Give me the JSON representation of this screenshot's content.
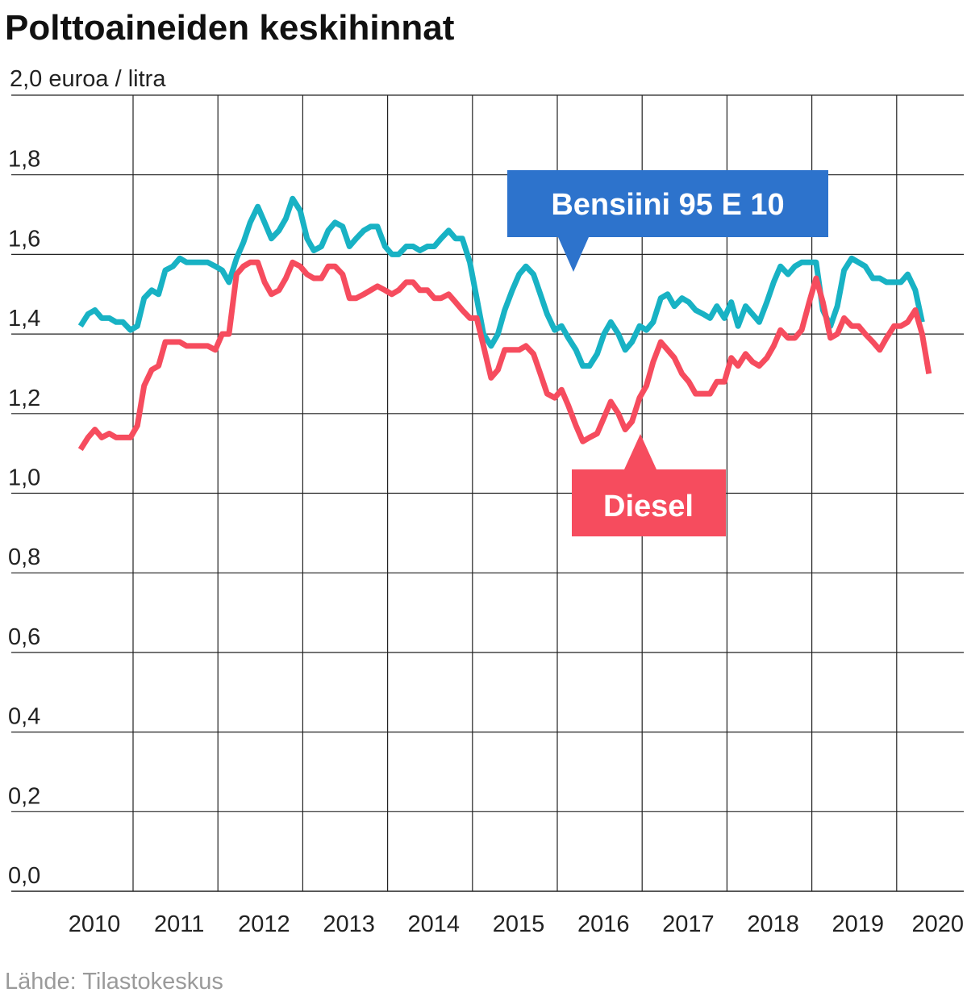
{
  "colors": {
    "petrol": "#18b2c4",
    "diesel": "#f64c5e",
    "petrol_callout": "#2d73cc",
    "diesel_callout": "#f64c5e",
    "grid": "#222222",
    "source": "#9a9a9a"
  },
  "chart_data": {
    "type": "line",
    "title": "Polttoaineiden keskihinnat",
    "unit_label": "2,0 euroa / litra",
    "source": "Lähde: Tilastokeskus",
    "ylim": [
      0,
      2.0
    ],
    "xlim": [
      2009.38,
      2020.35
    ],
    "yticks": [
      {
        "value": 1.8,
        "label": "1,8"
      },
      {
        "value": 1.6,
        "label": "1,6"
      },
      {
        "value": 1.4,
        "label": "1,4"
      },
      {
        "value": 1.2,
        "label": "1,2"
      },
      {
        "value": 1.0,
        "label": "1,0"
      },
      {
        "value": 0.8,
        "label": "0,8"
      },
      {
        "value": 0.6,
        "label": "0,6"
      },
      {
        "value": 0.4,
        "label": "0,4"
      },
      {
        "value": 0.2,
        "label": "0,2"
      },
      {
        "value": 0.0,
        "label": "0,0"
      }
    ],
    "xticks": [
      {
        "value": 2010,
        "label": "2010"
      },
      {
        "value": 2011,
        "label": "2011"
      },
      {
        "value": 2012,
        "label": "2012"
      },
      {
        "value": 2013,
        "label": "2013"
      },
      {
        "value": 2014,
        "label": "2014"
      },
      {
        "value": 2015,
        "label": "2015"
      },
      {
        "value": 2016,
        "label": "2016"
      },
      {
        "value": 2017,
        "label": "2017"
      },
      {
        "value": 2018,
        "label": "2018"
      },
      {
        "value": 2019,
        "label": "2019"
      },
      {
        "value": 2020,
        "label": "2020"
      }
    ],
    "series": [
      {
        "name": "Bensiini 95 E 10",
        "label": "Bensiini 95 E 10",
        "color": "#18b2c4",
        "points": [
          [
            2009.38,
            1.42
          ],
          [
            2009.47,
            1.45
          ],
          [
            2009.55,
            1.46
          ],
          [
            2009.63,
            1.44
          ],
          [
            2009.72,
            1.44
          ],
          [
            2009.8,
            1.43
          ],
          [
            2009.88,
            1.43
          ],
          [
            2009.97,
            1.41
          ],
          [
            2010.05,
            1.42
          ],
          [
            2010.13,
            1.49
          ],
          [
            2010.22,
            1.51
          ],
          [
            2010.3,
            1.5
          ],
          [
            2010.38,
            1.56
          ],
          [
            2010.47,
            1.57
          ],
          [
            2010.55,
            1.59
          ],
          [
            2010.63,
            1.58
          ],
          [
            2010.72,
            1.58
          ],
          [
            2010.8,
            1.58
          ],
          [
            2010.88,
            1.58
          ],
          [
            2010.97,
            1.57
          ],
          [
            2011.05,
            1.56
          ],
          [
            2011.13,
            1.53
          ],
          [
            2011.22,
            1.59
          ],
          [
            2011.3,
            1.63
          ],
          [
            2011.38,
            1.68
          ],
          [
            2011.47,
            1.72
          ],
          [
            2011.55,
            1.68
          ],
          [
            2011.63,
            1.64
          ],
          [
            2011.72,
            1.66
          ],
          [
            2011.8,
            1.69
          ],
          [
            2011.88,
            1.74
          ],
          [
            2011.97,
            1.71
          ],
          [
            2012.05,
            1.64
          ],
          [
            2012.13,
            1.61
          ],
          [
            2012.22,
            1.62
          ],
          [
            2012.3,
            1.66
          ],
          [
            2012.38,
            1.68
          ],
          [
            2012.47,
            1.67
          ],
          [
            2012.55,
            1.62
          ],
          [
            2012.63,
            1.64
          ],
          [
            2012.72,
            1.66
          ],
          [
            2012.8,
            1.67
          ],
          [
            2012.88,
            1.67
          ],
          [
            2012.97,
            1.62
          ],
          [
            2013.05,
            1.6
          ],
          [
            2013.13,
            1.6
          ],
          [
            2013.22,
            1.62
          ],
          [
            2013.3,
            1.62
          ],
          [
            2013.38,
            1.61
          ],
          [
            2013.47,
            1.62
          ],
          [
            2013.55,
            1.62
          ],
          [
            2013.63,
            1.64
          ],
          [
            2013.72,
            1.66
          ],
          [
            2013.8,
            1.64
          ],
          [
            2013.88,
            1.64
          ],
          [
            2013.97,
            1.58
          ],
          [
            2014.05,
            1.49
          ],
          [
            2014.13,
            1.4
          ],
          [
            2014.22,
            1.37
          ],
          [
            2014.3,
            1.4
          ],
          [
            2014.38,
            1.46
          ],
          [
            2014.47,
            1.51
          ],
          [
            2014.55,
            1.55
          ],
          [
            2014.63,
            1.57
          ],
          [
            2014.72,
            1.55
          ],
          [
            2014.8,
            1.5
          ],
          [
            2014.88,
            1.45
          ],
          [
            2014.97,
            1.41
          ],
          [
            2015.05,
            1.42
          ],
          [
            2015.13,
            1.39
          ],
          [
            2015.22,
            1.36
          ],
          [
            2015.3,
            1.32
          ],
          [
            2015.38,
            1.32
          ],
          [
            2015.47,
            1.35
          ],
          [
            2015.55,
            1.4
          ],
          [
            2015.63,
            1.43
          ],
          [
            2015.72,
            1.4
          ],
          [
            2015.8,
            1.36
          ],
          [
            2015.88,
            1.38
          ],
          [
            2015.97,
            1.42
          ],
          [
            2016.05,
            1.41
          ],
          [
            2016.13,
            1.43
          ],
          [
            2016.22,
            1.49
          ],
          [
            2016.3,
            1.5
          ],
          [
            2016.38,
            1.47
          ],
          [
            2016.47,
            1.49
          ],
          [
            2016.55,
            1.48
          ],
          [
            2016.63,
            1.46
          ],
          [
            2016.72,
            1.45
          ],
          [
            2016.8,
            1.44
          ],
          [
            2016.88,
            1.47
          ],
          [
            2016.97,
            1.44
          ],
          [
            2017.05,
            1.48
          ],
          [
            2017.13,
            1.42
          ],
          [
            2017.22,
            1.47
          ],
          [
            2017.3,
            1.45
          ],
          [
            2017.38,
            1.43
          ],
          [
            2017.47,
            1.48
          ],
          [
            2017.55,
            1.53
          ],
          [
            2017.63,
            1.57
          ],
          [
            2017.72,
            1.55
          ],
          [
            2017.8,
            1.57
          ],
          [
            2017.88,
            1.58
          ],
          [
            2017.97,
            1.58
          ],
          [
            2018.05,
            1.58
          ],
          [
            2018.13,
            1.46
          ],
          [
            2018.22,
            1.42
          ],
          [
            2018.3,
            1.47
          ],
          [
            2018.38,
            1.56
          ],
          [
            2018.47,
            1.59
          ],
          [
            2018.55,
            1.58
          ],
          [
            2018.63,
            1.57
          ],
          [
            2018.72,
            1.54
          ],
          [
            2018.8,
            1.54
          ],
          [
            2018.88,
            1.53
          ],
          [
            2018.97,
            1.53
          ],
          [
            2019.05,
            1.53
          ],
          [
            2019.13,
            1.55
          ],
          [
            2019.22,
            1.51
          ],
          [
            2019.3,
            1.43
          ]
        ]
      },
      {
        "name": "Diesel",
        "label": "Diesel",
        "color": "#f64c5e",
        "points": [
          [
            2009.38,
            1.11
          ],
          [
            2009.47,
            1.14
          ],
          [
            2009.55,
            1.16
          ],
          [
            2009.63,
            1.14
          ],
          [
            2009.72,
            1.15
          ],
          [
            2009.8,
            1.14
          ],
          [
            2009.88,
            1.14
          ],
          [
            2009.97,
            1.14
          ],
          [
            2010.05,
            1.17
          ],
          [
            2010.13,
            1.27
          ],
          [
            2010.22,
            1.31
          ],
          [
            2010.3,
            1.32
          ],
          [
            2010.38,
            1.38
          ],
          [
            2010.47,
            1.38
          ],
          [
            2010.55,
            1.38
          ],
          [
            2010.63,
            1.37
          ],
          [
            2010.72,
            1.37
          ],
          [
            2010.8,
            1.37
          ],
          [
            2010.88,
            1.37
          ],
          [
            2010.97,
            1.36
          ],
          [
            2011.05,
            1.4
          ],
          [
            2011.13,
            1.4
          ],
          [
            2011.22,
            1.55
          ],
          [
            2011.3,
            1.57
          ],
          [
            2011.38,
            1.58
          ],
          [
            2011.47,
            1.58
          ],
          [
            2011.55,
            1.53
          ],
          [
            2011.63,
            1.5
          ],
          [
            2011.72,
            1.51
          ],
          [
            2011.8,
            1.54
          ],
          [
            2011.88,
            1.58
          ],
          [
            2011.97,
            1.57
          ],
          [
            2012.05,
            1.55
          ],
          [
            2012.13,
            1.54
          ],
          [
            2012.22,
            1.54
          ],
          [
            2012.3,
            1.57
          ],
          [
            2012.38,
            1.57
          ],
          [
            2012.47,
            1.55
          ],
          [
            2012.55,
            1.49
          ],
          [
            2012.63,
            1.49
          ],
          [
            2012.72,
            1.5
          ],
          [
            2012.8,
            1.51
          ],
          [
            2012.88,
            1.52
          ],
          [
            2012.97,
            1.51
          ],
          [
            2013.05,
            1.5
          ],
          [
            2013.13,
            1.51
          ],
          [
            2013.22,
            1.53
          ],
          [
            2013.3,
            1.53
          ],
          [
            2013.38,
            1.51
          ],
          [
            2013.47,
            1.51
          ],
          [
            2013.55,
            1.49
          ],
          [
            2013.63,
            1.49
          ],
          [
            2013.72,
            1.5
          ],
          [
            2013.8,
            1.48
          ],
          [
            2013.88,
            1.46
          ],
          [
            2013.97,
            1.44
          ],
          [
            2014.05,
            1.44
          ],
          [
            2014.13,
            1.37
          ],
          [
            2014.22,
            1.29
          ],
          [
            2014.3,
            1.31
          ],
          [
            2014.38,
            1.36
          ],
          [
            2014.47,
            1.36
          ],
          [
            2014.55,
            1.36
          ],
          [
            2014.63,
            1.37
          ],
          [
            2014.72,
            1.35
          ],
          [
            2014.8,
            1.3
          ],
          [
            2014.88,
            1.25
          ],
          [
            2014.97,
            1.24
          ],
          [
            2015.05,
            1.26
          ],
          [
            2015.13,
            1.22
          ],
          [
            2015.22,
            1.17
          ],
          [
            2015.3,
            1.13
          ],
          [
            2015.38,
            1.14
          ],
          [
            2015.47,
            1.15
          ],
          [
            2015.55,
            1.19
          ],
          [
            2015.63,
            1.23
          ],
          [
            2015.72,
            1.2
          ],
          [
            2015.8,
            1.16
          ],
          [
            2015.88,
            1.18
          ],
          [
            2015.97,
            1.24
          ],
          [
            2016.05,
            1.27
          ],
          [
            2016.13,
            1.33
          ],
          [
            2016.22,
            1.38
          ],
          [
            2016.3,
            1.36
          ],
          [
            2016.38,
            1.34
          ],
          [
            2016.47,
            1.3
          ],
          [
            2016.55,
            1.28
          ],
          [
            2016.63,
            1.25
          ],
          [
            2016.72,
            1.25
          ],
          [
            2016.8,
            1.25
          ],
          [
            2016.88,
            1.28
          ],
          [
            2016.97,
            1.28
          ],
          [
            2017.05,
            1.34
          ],
          [
            2017.13,
            1.32
          ],
          [
            2017.22,
            1.35
          ],
          [
            2017.3,
            1.33
          ],
          [
            2017.38,
            1.32
          ],
          [
            2017.47,
            1.34
          ],
          [
            2017.55,
            1.37
          ],
          [
            2017.63,
            1.41
          ],
          [
            2017.72,
            1.39
          ],
          [
            2017.8,
            1.39
          ],
          [
            2017.88,
            1.41
          ],
          [
            2017.97,
            1.48
          ],
          [
            2018.05,
            1.54
          ],
          [
            2018.13,
            1.48
          ],
          [
            2018.22,
            1.39
          ],
          [
            2018.3,
            1.4
          ],
          [
            2018.38,
            1.44
          ],
          [
            2018.47,
            1.42
          ],
          [
            2018.55,
            1.42
          ],
          [
            2018.63,
            1.4
          ],
          [
            2018.72,
            1.38
          ],
          [
            2018.8,
            1.36
          ],
          [
            2018.88,
            1.39
          ],
          [
            2018.97,
            1.42
          ],
          [
            2019.05,
            1.42
          ],
          [
            2019.13,
            1.43
          ],
          [
            2019.22,
            1.46
          ],
          [
            2019.3,
            1.4
          ],
          [
            2019.38,
            1.3
          ]
        ]
      }
    ]
  }
}
